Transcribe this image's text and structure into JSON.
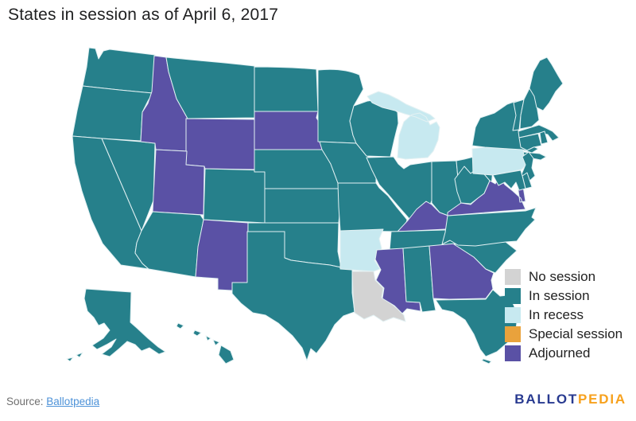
{
  "title": "States in session as of April 6, 2017",
  "legend": {
    "items": [
      {
        "key": "no_session",
        "label": "No session",
        "color": "#d3d3d3"
      },
      {
        "key": "in_session",
        "label": "In session",
        "color": "#26808b"
      },
      {
        "key": "in_recess",
        "label": "In recess",
        "color": "#c7e9f0"
      },
      {
        "key": "special_session",
        "label": "Special session",
        "color": "#e9a23c"
      },
      {
        "key": "adjourned",
        "label": "Adjourned",
        "color": "#5a51a5"
      }
    ]
  },
  "map": {
    "border_color": "#e3f1f3",
    "states": [
      {
        "id": "WA",
        "name": "Washington",
        "status": "in_session"
      },
      {
        "id": "OR",
        "name": "Oregon",
        "status": "in_session"
      },
      {
        "id": "CA",
        "name": "California",
        "status": "in_session"
      },
      {
        "id": "NV",
        "name": "Nevada",
        "status": "in_session"
      },
      {
        "id": "ID",
        "name": "Idaho",
        "status": "adjourned"
      },
      {
        "id": "MT",
        "name": "Montana",
        "status": "in_session"
      },
      {
        "id": "WY",
        "name": "Wyoming",
        "status": "adjourned"
      },
      {
        "id": "UT",
        "name": "Utah",
        "status": "adjourned"
      },
      {
        "id": "CO",
        "name": "Colorado",
        "status": "in_session"
      },
      {
        "id": "AZ",
        "name": "Arizona",
        "status": "in_session"
      },
      {
        "id": "NM",
        "name": "New Mexico",
        "status": "adjourned"
      },
      {
        "id": "ND",
        "name": "North Dakota",
        "status": "in_session"
      },
      {
        "id": "SD",
        "name": "South Dakota",
        "status": "adjourned"
      },
      {
        "id": "NE",
        "name": "Nebraska",
        "status": "in_session"
      },
      {
        "id": "KS",
        "name": "Kansas",
        "status": "in_session"
      },
      {
        "id": "OK",
        "name": "Oklahoma",
        "status": "in_session"
      },
      {
        "id": "TX",
        "name": "Texas",
        "status": "in_session"
      },
      {
        "id": "MN",
        "name": "Minnesota",
        "status": "in_session"
      },
      {
        "id": "IA",
        "name": "Iowa",
        "status": "in_session"
      },
      {
        "id": "MO",
        "name": "Missouri",
        "status": "in_session"
      },
      {
        "id": "AR",
        "name": "Arkansas",
        "status": "in_recess"
      },
      {
        "id": "LA",
        "name": "Louisiana",
        "status": "no_session"
      },
      {
        "id": "WI",
        "name": "Wisconsin",
        "status": "in_session"
      },
      {
        "id": "IL",
        "name": "Illinois",
        "status": "in_session"
      },
      {
        "id": "MI",
        "name": "Michigan",
        "status": "in_recess"
      },
      {
        "id": "IN",
        "name": "Indiana",
        "status": "in_session"
      },
      {
        "id": "OH",
        "name": "Ohio",
        "status": "in_session"
      },
      {
        "id": "KY",
        "name": "Kentucky",
        "status": "adjourned"
      },
      {
        "id": "TN",
        "name": "Tennessee",
        "status": "in_session"
      },
      {
        "id": "MS",
        "name": "Mississippi",
        "status": "adjourned"
      },
      {
        "id": "AL",
        "name": "Alabama",
        "status": "in_session"
      },
      {
        "id": "GA",
        "name": "Georgia",
        "status": "adjourned"
      },
      {
        "id": "FL",
        "name": "Florida",
        "status": "in_session"
      },
      {
        "id": "SC",
        "name": "South Carolina",
        "status": "in_session"
      },
      {
        "id": "NC",
        "name": "North Carolina",
        "status": "in_session"
      },
      {
        "id": "VA",
        "name": "Virginia",
        "status": "adjourned"
      },
      {
        "id": "WV",
        "name": "West Virginia",
        "status": "in_session"
      },
      {
        "id": "PA",
        "name": "Pennsylvania",
        "status": "in_recess"
      },
      {
        "id": "NY",
        "name": "New York",
        "status": "in_session"
      },
      {
        "id": "NJ",
        "name": "New Jersey",
        "status": "in_session"
      },
      {
        "id": "DE",
        "name": "Delaware",
        "status": "in_session"
      },
      {
        "id": "MD",
        "name": "Maryland",
        "status": "in_session"
      },
      {
        "id": "VT",
        "name": "Vermont",
        "status": "in_session"
      },
      {
        "id": "NH",
        "name": "New Hampshire",
        "status": "in_session"
      },
      {
        "id": "ME",
        "name": "Maine",
        "status": "in_session"
      },
      {
        "id": "MA",
        "name": "Massachusetts",
        "status": "in_session"
      },
      {
        "id": "CT",
        "name": "Connecticut",
        "status": "in_session"
      },
      {
        "id": "RI",
        "name": "Rhode Island",
        "status": "in_session"
      },
      {
        "id": "AK",
        "name": "Alaska",
        "status": "in_session"
      },
      {
        "id": "HI",
        "name": "Hawaii",
        "status": "in_session"
      }
    ]
  },
  "footer": {
    "source_label": "Source:",
    "source_link_text": "Ballotpedia",
    "logo_part1": "BALLOT",
    "logo_part2": "PEDIA"
  }
}
